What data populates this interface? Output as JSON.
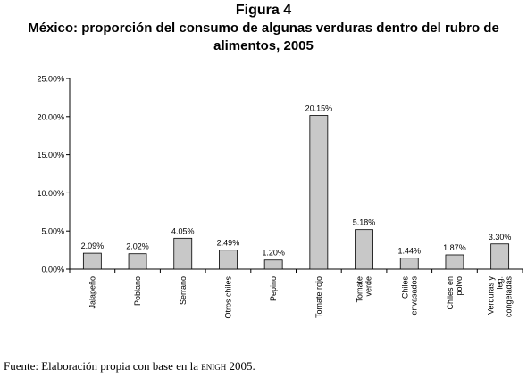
{
  "figure_number": "Figura 4",
  "chart_data": {
    "type": "bar",
    "title": "México: proporción del consumo de algunas verduras dentro del rubro de alimentos, 2005",
    "categories": [
      "Jalapeño",
      "Poblano",
      "Serrano",
      "Otros chiles",
      "Pepino",
      "Tomate rojo",
      "Tomate verde",
      "Chiles envasados",
      "Chiles en polvo",
      "Verduras y leg. congeladas"
    ],
    "category_label_lines": [
      [
        "Jalapeño"
      ],
      [
        "Poblano"
      ],
      [
        "Serrano"
      ],
      [
        "Otros chiles"
      ],
      [
        "Pepino"
      ],
      [
        "Tomate rojo"
      ],
      [
        "Tomate",
        "verde"
      ],
      [
        "Chiles",
        "envasados"
      ],
      [
        "Chiles en",
        "polvo"
      ],
      [
        "Verduras y",
        "leg.",
        "congeladas"
      ]
    ],
    "values": [
      2.09,
      2.02,
      4.05,
      2.49,
      1.2,
      20.15,
      5.18,
      1.44,
      1.87,
      3.3
    ],
    "data_labels": [
      "2.09%",
      "2.02%",
      "4.05%",
      "2.49%",
      "1.20%",
      "20.15%",
      "5.18%",
      "1.44%",
      "1.87%",
      "3.30%"
    ],
    "yticks": [
      "0.00%",
      "5.00%",
      "10.00%",
      "15.00%",
      "20.00%",
      "25.00%"
    ],
    "ylim": [
      0,
      25
    ],
    "xlabel": "",
    "ylabel": "",
    "grid": false,
    "bar_color": "#c8c8c8",
    "bar_edge_color": "#000000"
  },
  "source": {
    "prefix": "Fuente: Elaboración propia con base en la ",
    "acronym": "ENIGH",
    "suffix": " 2005."
  }
}
